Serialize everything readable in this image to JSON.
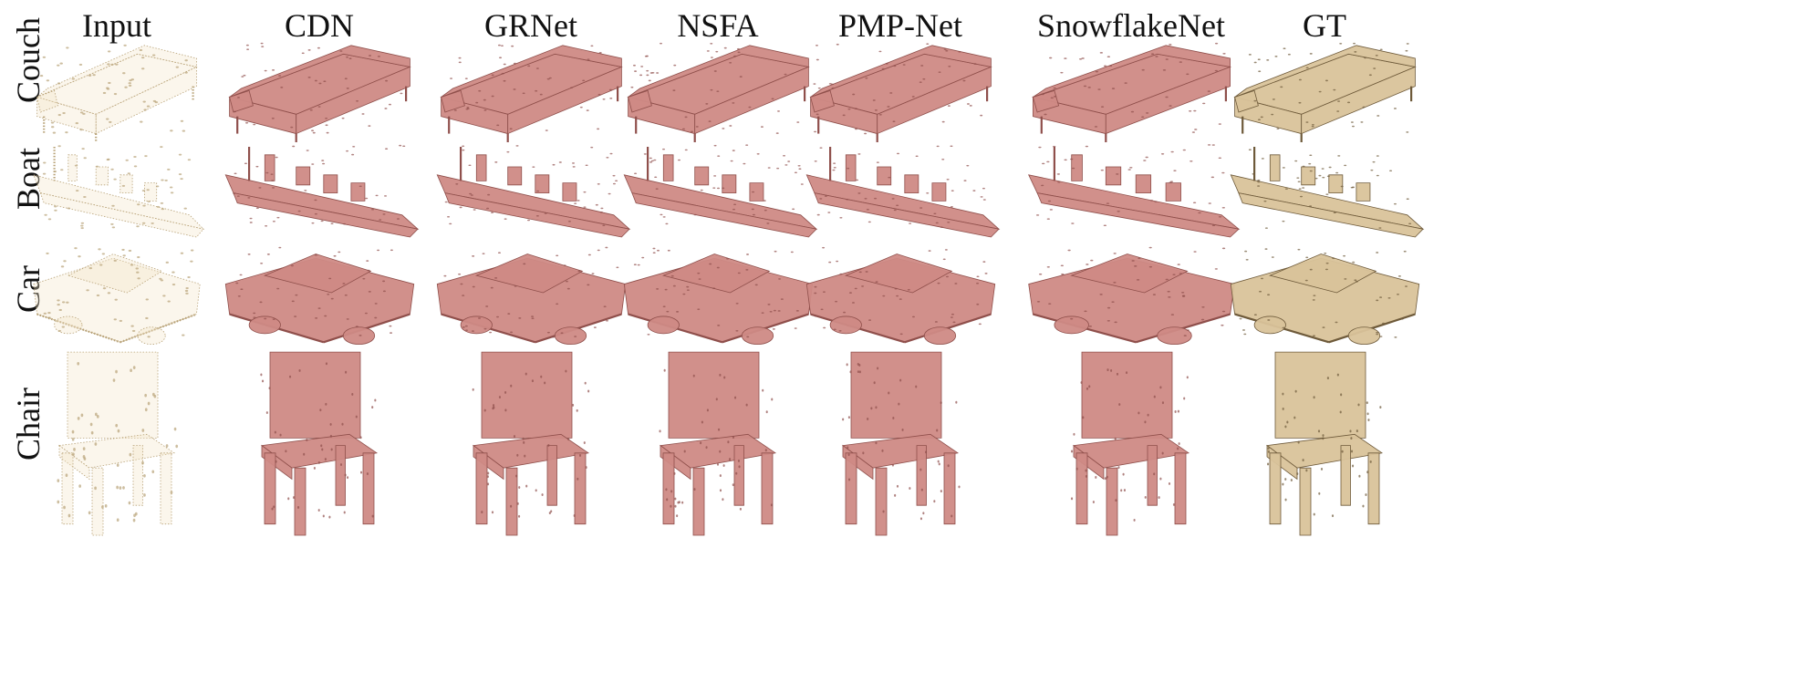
{
  "columns": [
    {
      "label": "Input",
      "style": "input"
    },
    {
      "label": "CDN",
      "style": "pred"
    },
    {
      "label": "GRNet",
      "style": "pred"
    },
    {
      "label": "NSFA",
      "style": "pred"
    },
    {
      "label": "PMP-Net",
      "style": "pred"
    },
    {
      "label": "SnowflakeNet",
      "style": "pred"
    },
    {
      "label": "GT",
      "style": "gt"
    }
  ],
  "rows": [
    {
      "label": "Couch",
      "shape": "couch"
    },
    {
      "label": "Boat",
      "shape": "boat"
    },
    {
      "label": "Car",
      "shape": "car"
    },
    {
      "label": "Chair",
      "shape": "chair"
    }
  ],
  "colors": {
    "input_fill": "#f3e6c8",
    "input_stroke": "#b8a277",
    "pred_fill": "#cf8a85",
    "pred_stroke": "#8f4f4b",
    "gt_fill": "#d9c39a",
    "gt_stroke": "#6e5a3a"
  }
}
